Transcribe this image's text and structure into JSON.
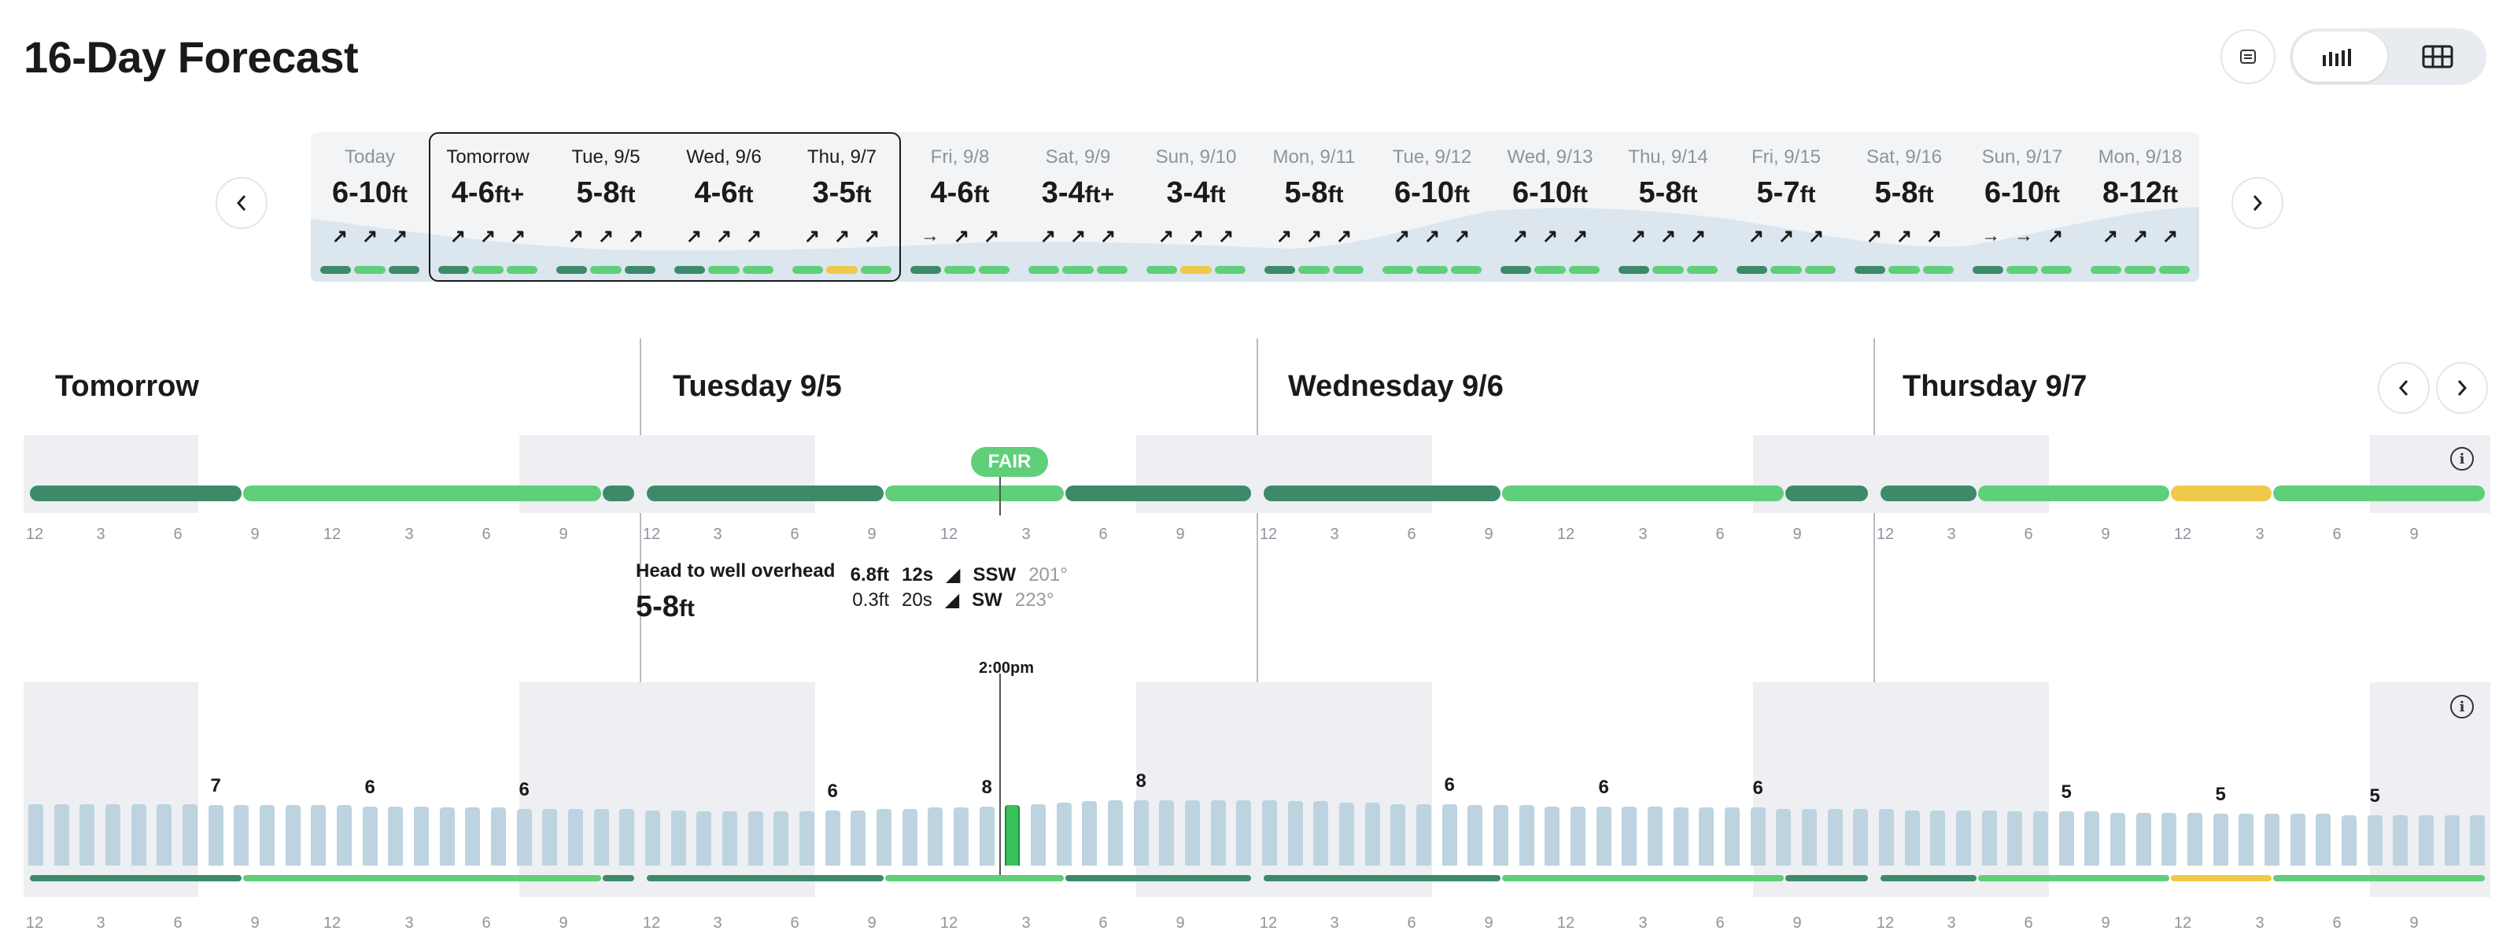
{
  "page": {
    "title": "16-Day Forecast"
  },
  "view": {
    "buttons": [
      "calendar-icon",
      "bar-chart-icon",
      "grid-icon"
    ],
    "selected": "bar-chart"
  },
  "colors": {
    "good": "#3c8a6a",
    "fair": "#5fcf7a",
    "poor_to_fair": "#f0c94a",
    "wave_bar": "#bdd3e0",
    "shade": "#edeff2"
  },
  "days": [
    {
      "name": "Today",
      "surf": "6-10",
      "unit": "ft",
      "plus": "",
      "arrows": [
        "↗",
        "↗",
        "↗"
      ],
      "ratings": [
        "#3c8a6a",
        "#5fcf7a",
        "#3c8a6a"
      ],
      "active": false
    },
    {
      "name": "Tomorrow",
      "surf": "4-6",
      "unit": "ft",
      "plus": "+",
      "arrows": [
        "↗",
        "↗",
        "↗"
      ],
      "ratings": [
        "#3c8a6a",
        "#5fcf7a",
        "#5fcf7a"
      ],
      "active": true
    },
    {
      "name": "Tue, 9/5",
      "surf": "5-8",
      "unit": "ft",
      "plus": "",
      "arrows": [
        "↗",
        "↗",
        "↗"
      ],
      "ratings": [
        "#3c8a6a",
        "#5fcf7a",
        "#3c8a6a"
      ],
      "active": true
    },
    {
      "name": "Wed, 9/6",
      "surf": "4-6",
      "unit": "ft",
      "plus": "",
      "arrows": [
        "↗",
        "↗",
        "↗"
      ],
      "ratings": [
        "#3c8a6a",
        "#5fcf7a",
        "#5fcf7a"
      ],
      "active": true
    },
    {
      "name": "Thu, 9/7",
      "surf": "3-5",
      "unit": "ft",
      "plus": "",
      "arrows": [
        "↗",
        "↗",
        "↗"
      ],
      "ratings": [
        "#5fcf7a",
        "#f0c94a",
        "#5fcf7a"
      ],
      "active": true
    },
    {
      "name": "Fri, 9/8",
      "surf": "4-6",
      "unit": "ft",
      "plus": "",
      "arrows": [
        "→",
        "↗",
        "↗"
      ],
      "ratings": [
        "#3c8a6a",
        "#5fcf7a",
        "#5fcf7a"
      ],
      "active": false
    },
    {
      "name": "Sat, 9/9",
      "surf": "3-4",
      "unit": "ft",
      "plus": "+",
      "arrows": [
        "↗",
        "↗",
        "↗"
      ],
      "ratings": [
        "#5fcf7a",
        "#5fcf7a",
        "#5fcf7a"
      ],
      "active": false
    },
    {
      "name": "Sun, 9/10",
      "surf": "3-4",
      "unit": "ft",
      "plus": "",
      "arrows": [
        "↗",
        "↗",
        "↗"
      ],
      "ratings": [
        "#5fcf7a",
        "#f0c94a",
        "#5fcf7a"
      ],
      "active": false
    },
    {
      "name": "Mon, 9/11",
      "surf": "5-8",
      "unit": "ft",
      "plus": "",
      "arrows": [
        "↗",
        "↗",
        "↗"
      ],
      "ratings": [
        "#3c8a6a",
        "#5fcf7a",
        "#5fcf7a"
      ],
      "active": false
    },
    {
      "name": "Tue, 9/12",
      "surf": "6-10",
      "unit": "ft",
      "plus": "",
      "arrows": [
        "↗",
        "↗",
        "↗"
      ],
      "ratings": [
        "#5fcf7a",
        "#5fcf7a",
        "#5fcf7a"
      ],
      "active": false
    },
    {
      "name": "Wed, 9/13",
      "surf": "6-10",
      "unit": "ft",
      "plus": "",
      "arrows": [
        "↗",
        "↗",
        "↗"
      ],
      "ratings": [
        "#3c8a6a",
        "#5fcf7a",
        "#5fcf7a"
      ],
      "active": false
    },
    {
      "name": "Thu, 9/14",
      "surf": "5-8",
      "unit": "ft",
      "plus": "",
      "arrows": [
        "↗",
        "↗",
        "↗"
      ],
      "ratings": [
        "#3c8a6a",
        "#5fcf7a",
        "#5fcf7a"
      ],
      "active": false
    },
    {
      "name": "Fri, 9/15",
      "surf": "5-7",
      "unit": "ft",
      "plus": "",
      "arrows": [
        "↗",
        "↗",
        "↗"
      ],
      "ratings": [
        "#3c8a6a",
        "#5fcf7a",
        "#5fcf7a"
      ],
      "active": false
    },
    {
      "name": "Sat, 9/16",
      "surf": "5-8",
      "unit": "ft",
      "plus": "",
      "arrows": [
        "↗",
        "↗",
        "↗"
      ],
      "ratings": [
        "#3c8a6a",
        "#5fcf7a",
        "#5fcf7a"
      ],
      "active": false
    },
    {
      "name": "Sun, 9/17",
      "surf": "6-10",
      "unit": "ft",
      "plus": "",
      "arrows": [
        "→",
        "→",
        "↗"
      ],
      "ratings": [
        "#3c8a6a",
        "#5fcf7a",
        "#5fcf7a"
      ],
      "active": false
    },
    {
      "name": "Mon, 9/18",
      "surf": "8-12",
      "unit": "ft",
      "plus": "",
      "arrows": [
        "↗",
        "↗",
        "↗"
      ],
      "ratings": [
        "#5fcf7a",
        "#5fcf7a",
        "#5fcf7a"
      ],
      "active": false
    }
  ],
  "detail": {
    "headers": [
      "Tomorrow",
      "Tuesday 9/5",
      "Wednesday 9/6",
      "Thursday 9/7"
    ],
    "hour_ticks": [
      "12",
      "3",
      "6",
      "9",
      "12",
      "3",
      "6",
      "9"
    ],
    "rating_badge": "FAIR",
    "tooltip": {
      "description": "Head to well overhead",
      "surf": "5-8",
      "unit": "ft",
      "swells": [
        {
          "height": "6.8ft",
          "period": "12s",
          "arrow": "◢",
          "dir": "SSW",
          "deg": "201°",
          "bold": true
        },
        {
          "height": "0.3ft",
          "period": "20s",
          "arrow": "◢",
          "dir": "SW",
          "deg": "223°",
          "bold": false
        }
      ]
    },
    "current_time": "2:00pm",
    "info_glyph": "i",
    "wave_peak_labels": [
      "7",
      "6",
      "6",
      "6",
      "8",
      "8",
      "6",
      "6",
      "6",
      "5",
      "5",
      "5"
    ]
  },
  "chart_data": {
    "type": "bar",
    "title": "",
    "xlabel": "",
    "ylabel": "",
    "series": [
      {
        "values": [
          4.9,
          4.9,
          4.9,
          4.9,
          4.9,
          4.9,
          4.9,
          4.8,
          4.8,
          4.8,
          4.8,
          4.8,
          4.8,
          4.7,
          4.7,
          4.7,
          4.6,
          4.6,
          4.6,
          4.5,
          4.5,
          4.5,
          4.5,
          4.5,
          4.4,
          4.4,
          4.3,
          4.3,
          4.3,
          4.3,
          4.3,
          4.4,
          4.4,
          4.5,
          4.5,
          4.6,
          4.6,
          4.7,
          4.8,
          4.9,
          5.0,
          5.1,
          5.2,
          5.2,
          5.2,
          5.2,
          5.2,
          5.2,
          5.2,
          5.1,
          5.1,
          5.0,
          5.0,
          4.9,
          4.9,
          4.9,
          4.8,
          4.8,
          4.8,
          4.7,
          4.7,
          4.7,
          4.7,
          4.7,
          4.6,
          4.6,
          4.6,
          4.6,
          4.5,
          4.5,
          4.5,
          4.5,
          4.5,
          4.4,
          4.4,
          4.4,
          4.4,
          4.3,
          4.3,
          4.3,
          4.3,
          4.2,
          4.2,
          4.2,
          4.2,
          4.1,
          4.1,
          4.1,
          4.1,
          4.1,
          4.0,
          4.0,
          4.0,
          4.0,
          4.0,
          4.0
        ]
      }
    ]
  }
}
